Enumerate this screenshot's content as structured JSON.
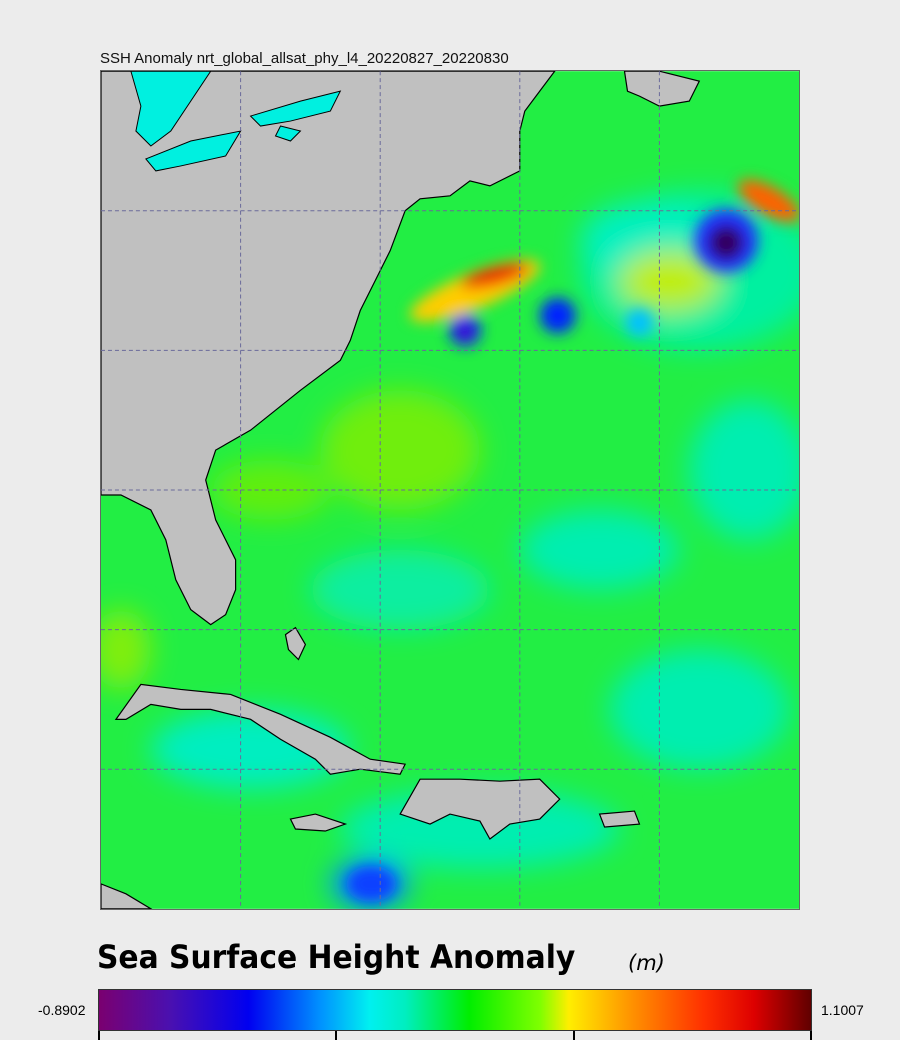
{
  "map_title": "SSH Anomaly nrt_global_allsat_phy_l4_20220827_20220830",
  "colorbar": {
    "title": "Sea Surface Height Anomaly",
    "unit": "(m)",
    "min": "-0.8902",
    "max": "1.1007",
    "colormap": [
      "#7a0070",
      "#0000f0",
      "#00f0f0",
      "#00ee00",
      "#ffee00",
      "#ff9000",
      "#dd0000",
      "#600000"
    ]
  },
  "colors": {
    "land": "#c0c0c0",
    "background": "#ececec",
    "grid": "#6a6a9a"
  }
}
